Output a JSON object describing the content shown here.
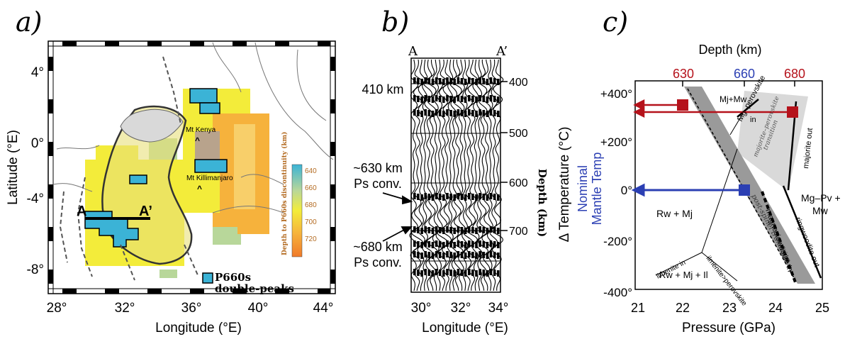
{
  "panel_a": {
    "letter": "a)",
    "xlabel": "Longitude (°E)",
    "ylabel": "Latitude (°E)",
    "xticks": [
      "28°",
      "32°",
      "36°",
      "40°",
      "44°"
    ],
    "yticks": [
      "4°",
      "0°",
      "-4°",
      "-8°"
    ],
    "labels": {
      "kenya": "Mt Kenya",
      "kili": "Mt Killimanjaro",
      "a": "A",
      "a_prime": "A’"
    },
    "colorbar": {
      "title": "Depth to P660s discontinuity (km)",
      "ticks": [
        "640",
        "660",
        "680",
        "700",
        "720"
      ]
    },
    "legend": {
      "line1": "P660s",
      "line2": "double-peaks"
    },
    "colors": {
      "cyan": "#3bb3d6",
      "yellow": "#f3ec3a",
      "orange": "#f6b23c",
      "light_orange": "#f8cf6a",
      "olive": "#c8c27a",
      "taupe": "#b8a38c",
      "green": "#b8d79a"
    }
  },
  "panel_b": {
    "letter": "b)",
    "xlabel": "Longitude (°E)",
    "xticks": [
      "30°",
      "32°",
      "34°"
    ],
    "top_labels": {
      "a": "A",
      "a_prime": "A’"
    },
    "depth_label": "Depth (km)",
    "depth_ticks": [
      "400",
      "500",
      "600",
      "700"
    ],
    "annotations": {
      "d410": "410 km",
      "d630_1": "~630 km",
      "d630_2": "Ps conv.",
      "d680_1": "~680 km",
      "d680_2": "Ps conv."
    }
  },
  "panel_c": {
    "letter": "c)",
    "top_title": "Depth (km)",
    "top_ticks": {
      "t630": "630",
      "t660": "660",
      "t680": "680"
    },
    "xlabel": "Pressure (GPa)",
    "ylabel": "Δ Temperature (°C)",
    "ylabel_nominal_1": "Nominal",
    "ylabel_nominal_2": "Mantle Temp",
    "xticks": [
      "21",
      "22",
      "23",
      "24",
      "25"
    ],
    "yticks": [
      "+400°",
      "+200°",
      "0°",
      "-200°",
      "-400°"
    ],
    "phases": {
      "mj_mw": "Mj+Mw",
      "mg_pv": "Mg–perovskite",
      "mg_pv_in": "in",
      "maj_pv": "majorite–perovskite",
      "transition": "transition",
      "majorite_out": "majorite out",
      "mg_pv_mw_1": "Mg–Pv +",
      "mg_pv_mw_2": "Mw",
      "rw_mj": "Rw + Mj",
      "post_spinel": "post-spinel transition",
      "magnesiowustite_in": "magnesiowüstite in",
      "ringwoodite_out": "ringwoodite out",
      "ilmenite_in": "ilmenite in",
      "ilm_pv": "ilmenite>perovskite",
      "rw_mj_il": "Rw + Mj + Il"
    },
    "colors": {
      "red": "#b5121b",
      "blue": "#2b3fb3",
      "gray": "#9a9a9a",
      "light_gray": "#d9d9d9"
    }
  }
}
